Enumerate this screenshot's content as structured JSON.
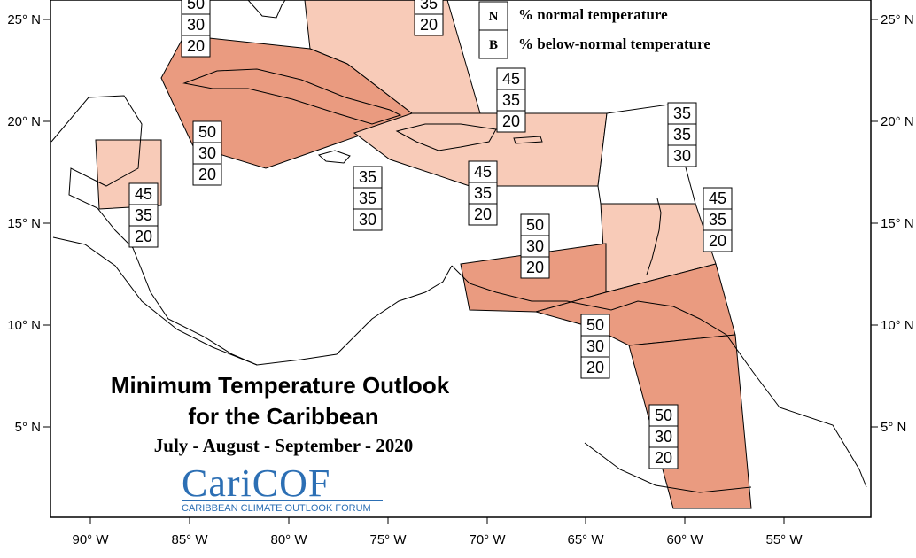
{
  "map": {
    "title_line1": "Minimum Temperature Outlook",
    "title_line2": "for the Caribbean",
    "period": "July - August - September - 2020",
    "logo_name": "CariCOF",
    "logo_subtitle": "CARIBBEAN CLIMATE OUTLOOK FORUM"
  },
  "legend": {
    "entries": [
      {
        "key": "N",
        "label": "% normal temperature"
      },
      {
        "key": "B",
        "label": "% below-normal temperature"
      }
    ]
  },
  "axes": {
    "x_ticks": [
      "90° W",
      "85° W",
      "80° W",
      "75° W",
      "70° W",
      "65° W",
      "60° W",
      "55° W"
    ],
    "y_ticks": [
      "25° N",
      "20° N",
      "15° N",
      "10° N",
      "5° N"
    ]
  },
  "colors": {
    "zone_50": "#ea9b80",
    "zone_45": "#f8cbb8",
    "zone_35": "#ffffff",
    "border": "#000000"
  },
  "zones": [
    {
      "id": "bahamas-north",
      "values": [
        "35",
        "20"
      ]
    },
    {
      "id": "bahamas-west",
      "values": [
        "50",
        "30",
        "20"
      ]
    },
    {
      "id": "cuba",
      "values": [
        "50",
        "30",
        "20"
      ]
    },
    {
      "id": "belize",
      "values": [
        "45",
        "35",
        "20"
      ]
    },
    {
      "id": "jamaica",
      "values": [
        "35",
        "35",
        "30"
      ]
    },
    {
      "id": "hispaniola",
      "values": [
        "45",
        "35",
        "20"
      ]
    },
    {
      "id": "puerto-rico",
      "values": [
        "45",
        "35",
        "20"
      ]
    },
    {
      "id": "leeward-islands",
      "values": [
        "35",
        "35",
        "30"
      ]
    },
    {
      "id": "windward-islands",
      "values": [
        "45",
        "35",
        "20"
      ]
    },
    {
      "id": "abc-islands",
      "values": [
        "50",
        "30",
        "20"
      ]
    },
    {
      "id": "trinidad",
      "values": [
        "50",
        "30",
        "20"
      ]
    },
    {
      "id": "guianas",
      "values": [
        "50",
        "30",
        "20"
      ]
    }
  ]
}
